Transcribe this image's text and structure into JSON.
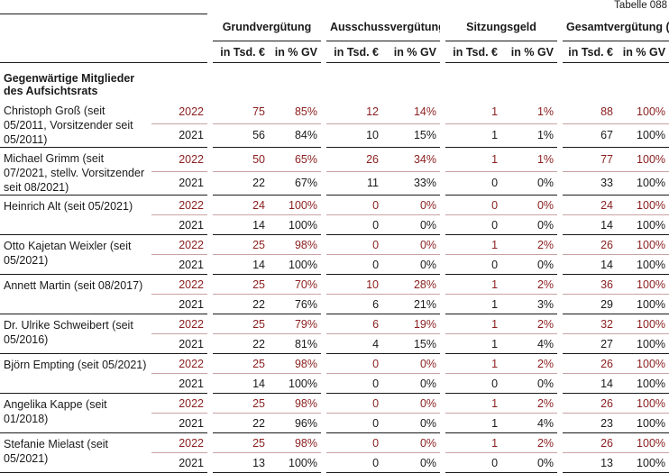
{
  "table_number": "Tabelle 088",
  "columns": {
    "groups": [
      "Grundvergütung",
      "Ausschussvergütung",
      "Sitzungsgeld",
      "Gesamtvergütung (GV)"
    ],
    "sub": [
      "in Tsd. €",
      "in % GV"
    ]
  },
  "section_title": "Gegenwärtige Mitglieder des Aufsichtsrats",
  "members": [
    {
      "name": "Christoph Groß (seit 05/2011, Vorsitzender seit 05/2011)",
      "rows": [
        {
          "year": "2022",
          "values": [
            "75",
            "85%",
            "12",
            "14%",
            "1",
            "1%",
            "88",
            "100%"
          ]
        },
        {
          "year": "2021",
          "values": [
            "56",
            "84%",
            "10",
            "15%",
            "1",
            "1%",
            "67",
            "100%"
          ]
        }
      ]
    },
    {
      "name": "Michael Grimm (seit 07/2021, stellv. Vorsitzender seit 08/2021)",
      "rows": [
        {
          "year": "2022",
          "values": [
            "50",
            "65%",
            "26",
            "34%",
            "1",
            "1%",
            "77",
            "100%"
          ]
        },
        {
          "year": "2021",
          "values": [
            "22",
            "67%",
            "11",
            "33%",
            "0",
            "0%",
            "33",
            "100%"
          ]
        }
      ]
    },
    {
      "name": "Heinrich Alt (seit 05/2021)",
      "rows": [
        {
          "year": "2022",
          "values": [
            "24",
            "100%",
            "0",
            "0%",
            "0",
            "0%",
            "24",
            "100%"
          ]
        },
        {
          "year": "2021",
          "values": [
            "14",
            "100%",
            "0",
            "0%",
            "0",
            "0%",
            "14",
            "100%"
          ]
        }
      ]
    },
    {
      "name": "Otto Kajetan Weixler (seit 05/2021)",
      "rows": [
        {
          "year": "2022",
          "values": [
            "25",
            "98%",
            "0",
            "0%",
            "1",
            "2%",
            "26",
            "100%"
          ]
        },
        {
          "year": "2021",
          "values": [
            "14",
            "100%",
            "0",
            "0%",
            "0",
            "0%",
            "14",
            "100%"
          ]
        }
      ]
    },
    {
      "name": "Annett Martin (seit 08/2017)",
      "rows": [
        {
          "year": "2022",
          "values": [
            "25",
            "70%",
            "10",
            "28%",
            "1",
            "2%",
            "36",
            "100%"
          ]
        },
        {
          "year": "2021",
          "values": [
            "22",
            "76%",
            "6",
            "21%",
            "1",
            "3%",
            "29",
            "100%"
          ]
        }
      ]
    },
    {
      "name": "Dr. Ulrike Schweibert (seit 05/2016)",
      "rows": [
        {
          "year": "2022",
          "values": [
            "25",
            "79%",
            "6",
            "19%",
            "1",
            "2%",
            "32",
            "100%"
          ]
        },
        {
          "year": "2021",
          "values": [
            "22",
            "81%",
            "4",
            "15%",
            "1",
            "4%",
            "27",
            "100%"
          ]
        }
      ]
    },
    {
      "name": "Björn Empting (seit 05/2021)",
      "rows": [
        {
          "year": "2022",
          "values": [
            "25",
            "98%",
            "0",
            "0%",
            "1",
            "2%",
            "26",
            "100%"
          ]
        },
        {
          "year": "2021",
          "values": [
            "14",
            "100%",
            "0",
            "0%",
            "0",
            "0%",
            "14",
            "100%"
          ]
        }
      ]
    },
    {
      "name": "Angelika Kappe (seit 01/2018)",
      "rows": [
        {
          "year": "2022",
          "values": [
            "25",
            "98%",
            "0",
            "0%",
            "1",
            "2%",
            "26",
            "100%"
          ]
        },
        {
          "year": "2021",
          "values": [
            "22",
            "96%",
            "0",
            "0%",
            "1",
            "4%",
            "23",
            "100%"
          ]
        }
      ]
    },
    {
      "name": "Stefanie Mielast (seit 05/2021)",
      "rows": [
        {
          "year": "2022",
          "values": [
            "25",
            "98%",
            "0",
            "0%",
            "1",
            "2%",
            "26",
            "100%"
          ]
        },
        {
          "year": "2021",
          "values": [
            "13",
            "100%",
            "0",
            "0%",
            "0",
            "0%",
            "13",
            "100%"
          ]
        }
      ]
    }
  ],
  "colors": {
    "current_year": "#8a1e1e",
    "rule_light": "#c9a3a3",
    "text": "#1a1a1a"
  }
}
